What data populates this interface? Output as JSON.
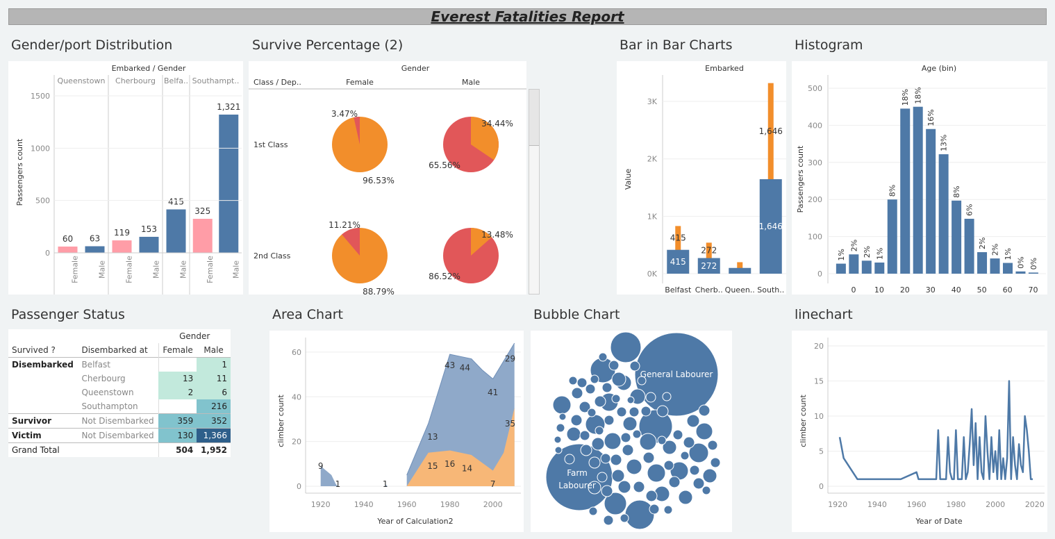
{
  "report_title": "Everest Fatalities Report",
  "titles": {
    "gender_port": "Gender/port Distribution",
    "survive": "Survive Percentage (2)",
    "bar_in_bar": "Bar in Bar Charts",
    "histogram": "Histogram",
    "status": "Passenger Status",
    "area": "Area Chart",
    "bubble": "Bubble Chart",
    "line": "linechart"
  },
  "colors": {
    "blue": "#4e79a7",
    "pink": "#ff9da7",
    "orange": "#f28e2b",
    "red": "#e15759",
    "teal_light": "#c2e9dc",
    "teal_mid": "#81c3cd",
    "navy": "#2e5f8a"
  },
  "status_table": {
    "header_group": "Gender",
    "col_survived": "Survived ?",
    "col_disembarked": "Disembarked at",
    "col_female": "Female",
    "col_male": "Male",
    "rows": [
      {
        "group": "Disembarked",
        "sub": "Belfast",
        "female": "",
        "male": "1"
      },
      {
        "group": "",
        "sub": "Cherbourg",
        "female": "13",
        "male": "11"
      },
      {
        "group": "",
        "sub": "Queenstown",
        "female": "2",
        "male": "6"
      },
      {
        "group": "",
        "sub": "Southampton",
        "female": "",
        "male": "216"
      },
      {
        "group": "Survivor",
        "sub": "Not Disembarked",
        "female": "359",
        "male": "352"
      },
      {
        "group": "Victim",
        "sub": "Not Disembarked",
        "female": "130",
        "male": "1,366"
      }
    ],
    "total_label": "Grand Total",
    "total_female": "504",
    "total_male": "1,952"
  },
  "chart_data": [
    {
      "id": "gender_port",
      "type": "bar",
      "title": "Gender/port Distribution",
      "header": "Embarked / Gender",
      "ylabel": "Passengers count",
      "ylim": [
        0,
        1500
      ],
      "yticks": [
        0,
        500,
        1000,
        1500
      ],
      "ports": [
        "Queenstown",
        "Cherbourg",
        "Belfa..",
        "Southampt.."
      ],
      "bars": [
        {
          "port": "Queenstown",
          "gender": "Female",
          "value": 60,
          "label": "60"
        },
        {
          "port": "Queenstown",
          "gender": "Male",
          "value": 63,
          "label": "63"
        },
        {
          "port": "Cherbourg",
          "gender": "Female",
          "value": 119,
          "label": "119"
        },
        {
          "port": "Cherbourg",
          "gender": "Male",
          "value": 153,
          "label": "153"
        },
        {
          "port": "Belfa..",
          "gender": "Male",
          "value": 415,
          "label": "415"
        },
        {
          "port": "Southampt..",
          "gender": "Female",
          "value": 325,
          "label": "325"
        },
        {
          "port": "Southampt..",
          "gender": "Male",
          "value": 1321,
          "label": "1,321"
        }
      ]
    },
    {
      "id": "survive",
      "type": "pie",
      "title": "Survive Percentage (2)",
      "header": "Gender",
      "row_header": "Class / Dep..",
      "columns": [
        "Female",
        "Male"
      ],
      "rows": [
        "1st Class",
        "2nd Class"
      ],
      "pies": [
        {
          "row": "1st Class",
          "col": "Female",
          "small_pct": 3.47,
          "small_label": "3.47%",
          "large_label": "96.53%",
          "small_color": "red",
          "large_color": "orange"
        },
        {
          "row": "1st Class",
          "col": "Male",
          "small_pct": 34.44,
          "small_label": "34.44%",
          "large_label": "65.56%",
          "small_color": "orange",
          "large_color": "red"
        },
        {
          "row": "2nd Class",
          "col": "Female",
          "small_pct": 11.21,
          "small_label": "11.21%",
          "large_label": "88.79%",
          "small_color": "red",
          "large_color": "orange"
        },
        {
          "row": "2nd Class",
          "col": "Male",
          "small_pct": 13.48,
          "small_label": "13.48%",
          "large_label": "86.52%",
          "small_color": "orange",
          "large_color": "red"
        }
      ]
    },
    {
      "id": "bar_in_bar",
      "type": "bar",
      "title": "Bar in Bar Charts",
      "header": "Embarked",
      "ylabel": "Value",
      "ylim": [
        0,
        3400
      ],
      "yticks": [
        0,
        1000,
        2000,
        3000
      ],
      "ytick_labels": [
        "0K",
        "1K",
        "2K",
        "3K"
      ],
      "categories": [
        "Belfast",
        "Cherb..",
        "Queen..",
        "South.."
      ],
      "outer_values": [
        830,
        540,
        200,
        3320
      ],
      "inner_values": [
        415,
        272,
        100,
        1646
      ],
      "outer_labels": [
        "415",
        "272",
        "",
        "1,646"
      ],
      "inner_labels": [
        "415",
        "272",
        "",
        "1,646"
      ]
    },
    {
      "id": "histogram",
      "type": "bar",
      "title": "Histogram",
      "header": "Age (bin)",
      "ylabel": "Passengers count",
      "ylim": [
        0,
        520
      ],
      "yticks": [
        0,
        100,
        200,
        300,
        400,
        500
      ],
      "xticks": [
        0,
        10,
        20,
        30,
        40,
        50,
        60,
        70
      ],
      "bins": [
        -5,
        0,
        5,
        10,
        15,
        20,
        25,
        30,
        35,
        40,
        45,
        50,
        55,
        60,
        65,
        70
      ],
      "values": [
        27,
        52,
        35,
        30,
        200,
        445,
        450,
        390,
        322,
        197,
        148,
        58,
        41,
        29,
        6,
        3
      ],
      "labels": [
        "1%",
        "2%",
        "2%",
        "1%",
        "8%",
        "18%",
        "18%",
        "16%",
        "13%",
        "8%",
        "6%",
        "2%",
        "2%",
        "1%",
        "0%",
        "0%"
      ]
    },
    {
      "id": "area",
      "type": "area",
      "title": "Area Chart",
      "xlabel": "Year of Calculation2",
      "ylabel": "climber count",
      "xlim": [
        1913,
        2013
      ],
      "ylim": [
        0,
        64
      ],
      "xticks": [
        1920,
        1940,
        1960,
        1980,
        2000
      ],
      "yticks": [
        0,
        20,
        40,
        60
      ],
      "blue_segments": [
        [
          [
            1920,
            9
          ],
          [
            1925,
            5
          ],
          [
            1927,
            1
          ],
          [
            1928,
            0
          ],
          [
            1920,
            0
          ]
        ],
        [
          [
            1950,
            1
          ],
          [
            1951,
            0
          ],
          [
            1950,
            0
          ]
        ],
        [
          [
            1960,
            5
          ],
          [
            1970,
            28
          ],
          [
            1980,
            59
          ],
          [
            1985,
            58
          ],
          [
            1990,
            57
          ],
          [
            1995,
            52
          ],
          [
            2000,
            48
          ],
          [
            2010,
            64
          ],
          [
            2010,
            0
          ],
          [
            1960,
            0
          ]
        ]
      ],
      "orange_segment": [
        [
          1960,
          0
        ],
        [
          1970,
          15
        ],
        [
          1980,
          16
        ],
        [
          1990,
          14
        ],
        [
          2000,
          7
        ],
        [
          2005,
          15
        ],
        [
          2010,
          35
        ],
        [
          2010,
          0
        ]
      ],
      "labels": [
        {
          "x": 1920,
          "y": 9,
          "t": "9"
        },
        {
          "x": 1928,
          "y": 1,
          "t": "1"
        },
        {
          "x": 1950,
          "y": 1,
          "t": "1"
        },
        {
          "x": 1972,
          "y": 22,
          "t": "13"
        },
        {
          "x": 1972,
          "y": 9,
          "t": "15"
        },
        {
          "x": 1980,
          "y": 10,
          "t": "16"
        },
        {
          "x": 1988,
          "y": 8,
          "t": "14"
        },
        {
          "x": 1980,
          "y": 54,
          "t": "43"
        },
        {
          "x": 1987,
          "y": 53,
          "t": "44"
        },
        {
          "x": 2000,
          "y": 42,
          "t": "41"
        },
        {
          "x": 2000,
          "y": 1,
          "t": "7"
        },
        {
          "x": 2008,
          "y": 28,
          "t": "35"
        },
        {
          "x": 2008,
          "y": 57,
          "t": "29"
        }
      ]
    },
    {
      "id": "bubble",
      "type": "scatter",
      "title": "Bubble Chart",
      "labeled": [
        {
          "label": "General Labourer",
          "size": "largest"
        },
        {
          "label": "Farm Labourer",
          "size": "second"
        }
      ]
    },
    {
      "id": "line",
      "type": "line",
      "title": "linechart",
      "xlabel": "Year of Date",
      "ylabel": "climber count",
      "xlim": [
        1915,
        2025
      ],
      "ylim": [
        0,
        21
      ],
      "xticks": [
        1920,
        1940,
        1960,
        1980,
        2000,
        2020
      ],
      "yticks": [
        0,
        5,
        10,
        15,
        20
      ],
      "x": [
        1921,
        1923,
        1930,
        1932,
        1952,
        1960,
        1961,
        1963,
        1968,
        1970,
        1971,
        1972,
        1973,
        1974,
        1975,
        1976,
        1977,
        1978,
        1979,
        1980,
        1981,
        1982,
        1983,
        1984,
        1985,
        1986,
        1987,
        1988,
        1989,
        1990,
        1991,
        1992,
        1993,
        1994,
        1995,
        1996,
        1997,
        1998,
        1999,
        2000,
        2001,
        2002,
        2003,
        2004,
        2005,
        2006,
        2007,
        2008,
        2009,
        2010,
        2011,
        2012,
        2013,
        2014,
        2015,
        2016,
        2017,
        2018,
        2019
      ],
      "y": [
        7,
        4,
        1,
        1,
        1,
        2,
        1,
        1,
        1,
        1,
        8,
        1,
        1,
        1,
        1,
        7,
        2,
        1,
        1,
        8,
        1,
        1,
        1,
        7,
        1,
        2,
        6,
        11,
        3,
        9,
        1,
        7,
        2,
        1,
        10,
        5,
        1,
        7,
        2,
        5,
        1,
        8,
        1,
        4,
        1,
        4,
        15,
        1,
        7,
        3,
        1,
        6,
        3,
        2,
        10,
        8,
        5,
        1,
        1
      ]
    }
  ]
}
